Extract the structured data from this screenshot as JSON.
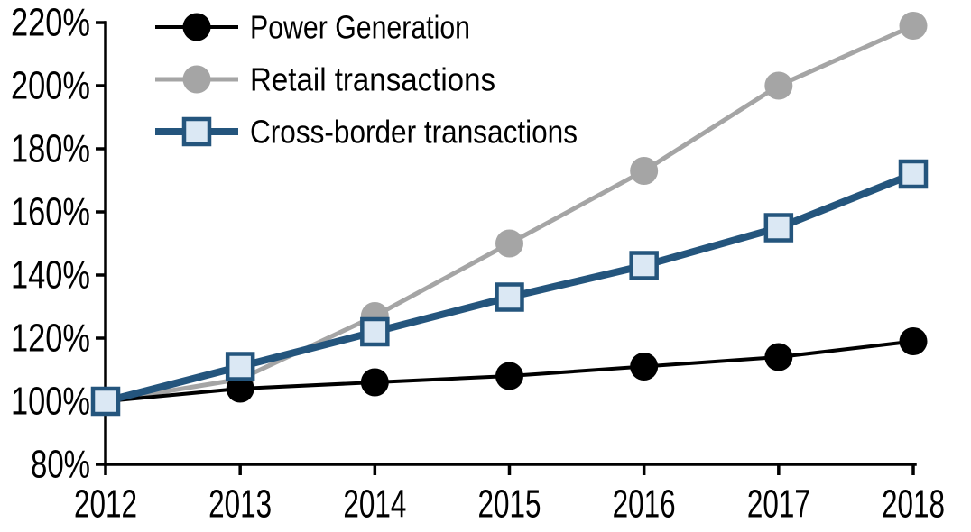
{
  "chart_data": {
    "type": "line",
    "title": "",
    "x_labels": [
      "2012",
      "2013",
      "2014",
      "2015",
      "2016",
      "2017",
      "2018"
    ],
    "series": [
      {
        "name": "Power Generation",
        "color": "#000000",
        "marker": "circle",
        "marker_fill": "#000000",
        "line_width": 4,
        "values": [
          100,
          104,
          106,
          108,
          111,
          114,
          119
        ]
      },
      {
        "name": "Retail transactions",
        "color": "#a5a5a5",
        "marker": "circle",
        "marker_fill": "#a5a5a5",
        "line_width": 5,
        "values": [
          100,
          107,
          127,
          150,
          173,
          200,
          219
        ]
      },
      {
        "name": "Cross-border transactions",
        "color": "#24557d",
        "marker": "square",
        "marker_fill": "#dbe8f4",
        "line_width": 8,
        "values": [
          100,
          111,
          122,
          133,
          143,
          155,
          172
        ]
      }
    ],
    "draw_order": [
      1,
      0,
      2
    ],
    "ylim": [
      80,
      220
    ],
    "ytick_step": 20,
    "ytick_labels": [
      "80%",
      "100%",
      "120%",
      "140%",
      "160%",
      "180%",
      "200%",
      "220%"
    ],
    "ytick_format": "percent",
    "axis_color": "#000000",
    "grid": false,
    "legend_position": "top-left"
  }
}
